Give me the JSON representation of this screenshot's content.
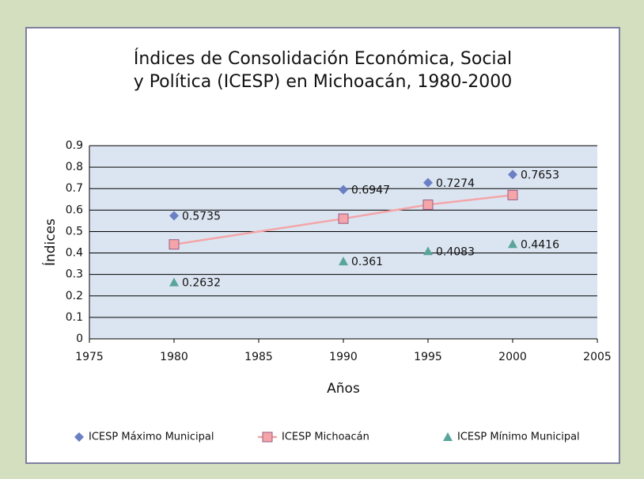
{
  "chart_data": {
    "type": "line",
    "title": [
      "Índices de Consolidación Económica, Social",
      "y Política (ICESP) en Michoacán, 1980-2000"
    ],
    "xlabel": "Años",
    "ylabel": "Índices",
    "x": [
      1980,
      1990,
      1995,
      2000
    ],
    "series": [
      {
        "name": "ICESP Máximo Municipal",
        "color": "#6a7fc4",
        "marker": "diamond",
        "line": false,
        "labels": true,
        "values": [
          0.5735,
          0.6947,
          0.7274,
          0.7653
        ]
      },
      {
        "name": "ICESP Michoacán",
        "color": "#f4a5a8",
        "marker": "square",
        "line": true,
        "labels": false,
        "values": [
          0.44,
          0.56,
          0.625,
          0.67
        ]
      },
      {
        "name": "ICESP Mínimo Municipal",
        "color": "#5aa59b",
        "marker": "triangle",
        "line": false,
        "labels": true,
        "values": [
          0.2632,
          0.361,
          0.4083,
          0.4416
        ]
      }
    ],
    "xlim": [
      1975,
      2005
    ],
    "xticks": [
      1975,
      1980,
      1985,
      1990,
      1995,
      2000,
      2005
    ],
    "ylim": [
      0,
      0.9
    ],
    "yticks": [
      0,
      0.1,
      0.2,
      0.3,
      0.4,
      0.5,
      0.6,
      0.7,
      0.8,
      0.9
    ],
    "grid": true,
    "legend": "bottom"
  }
}
